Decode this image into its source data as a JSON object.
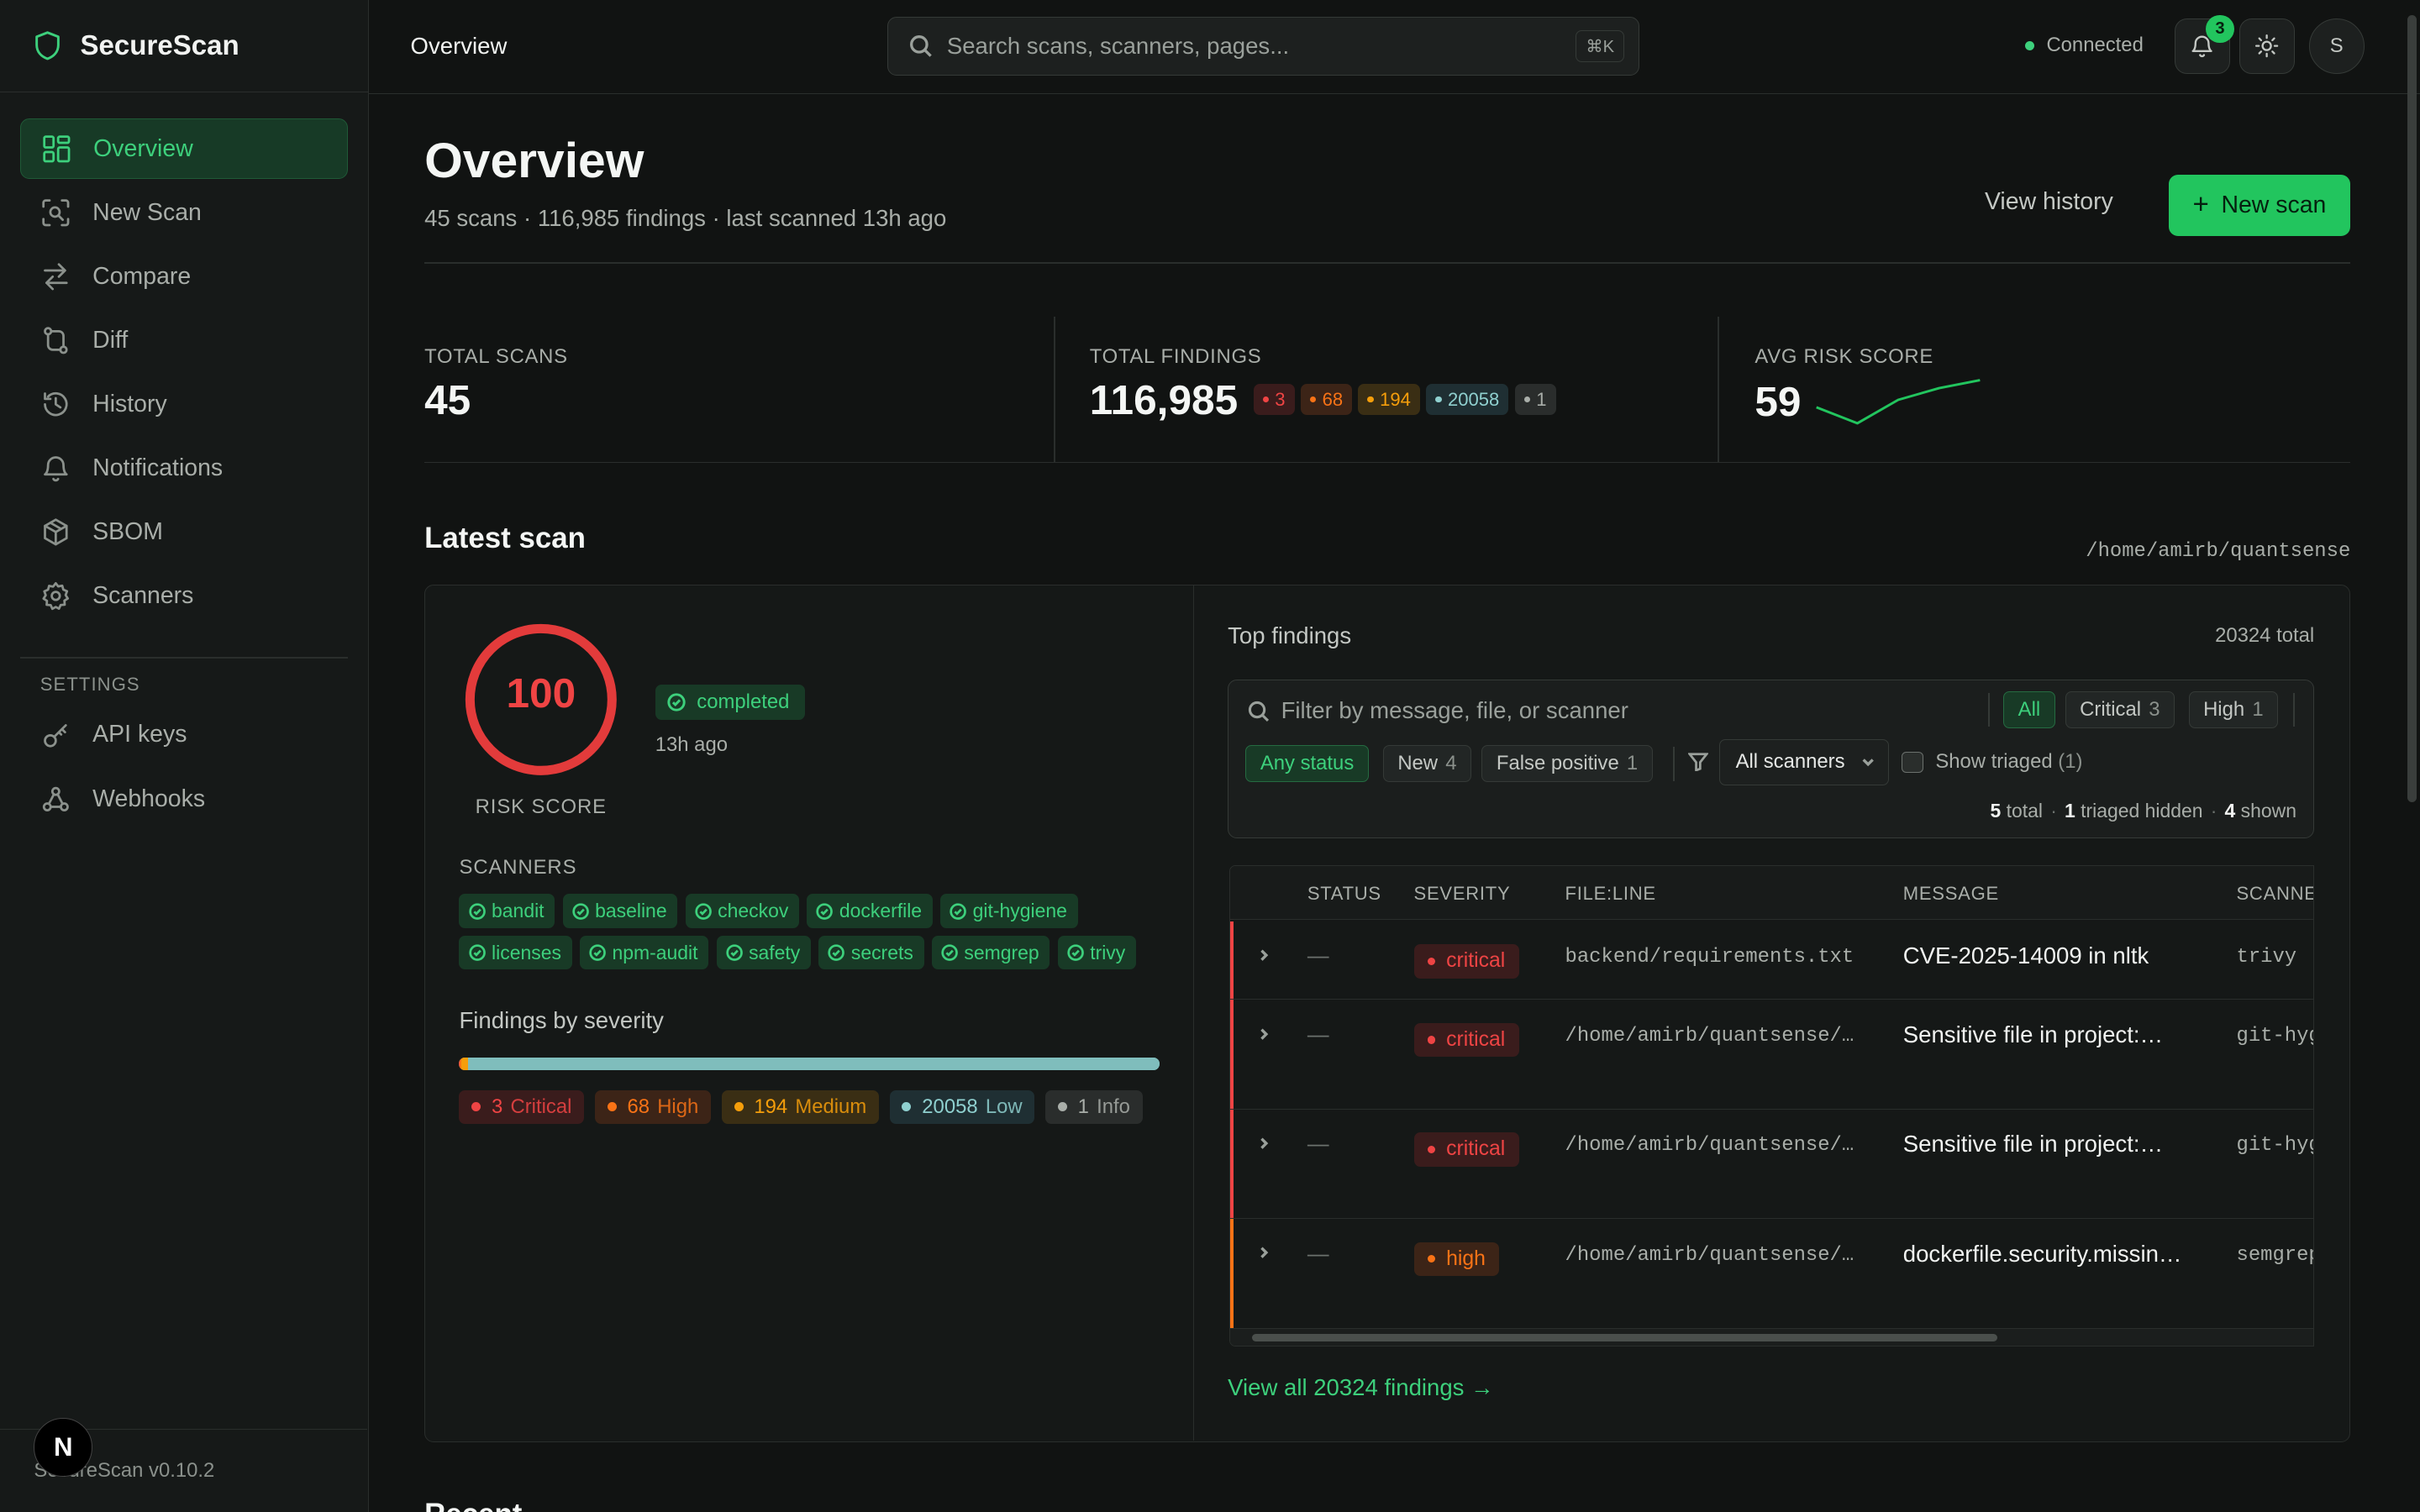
{
  "brand": {
    "name": "SecureScan",
    "version": "SecureScan v0.10.2",
    "logo_letter": "N"
  },
  "sidebar": {
    "items": [
      {
        "label": "Overview",
        "icon": "grid-icon",
        "active": true
      },
      {
        "label": "New Scan",
        "icon": "scan-icon"
      },
      {
        "label": "Compare",
        "icon": "arrows-icon"
      },
      {
        "label": "Diff",
        "icon": "git-diff-icon"
      },
      {
        "label": "History",
        "icon": "history-icon"
      },
      {
        "label": "Notifications",
        "icon": "bell-icon"
      },
      {
        "label": "SBOM",
        "icon": "box-icon"
      },
      {
        "label": "Scanners",
        "icon": "gear-icon"
      }
    ],
    "settings_label": "SETTINGS",
    "settings_items": [
      {
        "label": "API keys",
        "icon": "key-icon"
      },
      {
        "label": "Webhooks",
        "icon": "webhook-icon"
      }
    ]
  },
  "topbar": {
    "breadcrumb": "Overview",
    "search_placeholder": "Search scans, scanners, pages...",
    "shortcut": "⌘K",
    "status": "Connected",
    "notification_count": "3",
    "avatar": "S"
  },
  "page": {
    "title": "Overview",
    "subtitle": "45 scans · 116,985 findings · last scanned 13h ago",
    "view_history": "View history",
    "new_scan": "New scan"
  },
  "stats": {
    "total_scans": {
      "label": "TOTAL SCANS",
      "value": "45"
    },
    "total_findings": {
      "label": "TOTAL FINDINGS",
      "value": "116,985",
      "pills": {
        "critical": "3",
        "high": "68",
        "medium": "194",
        "low": "20058",
        "info": "1"
      }
    },
    "avg_risk": {
      "label": "AVG RISK SCORE",
      "value": "59",
      "trend": [
        40,
        62,
        30,
        14,
        3
      ]
    }
  },
  "latest_scan": {
    "title": "Latest scan",
    "path": "/home/amirb/quantsense",
    "risk_score": "100",
    "risk_label": "RISK SCORE",
    "status": "completed",
    "ago": "13h ago",
    "scanners_label": "SCANNERS",
    "scanners": [
      "bandit",
      "baseline",
      "checkov",
      "dockerfile",
      "git-hygiene",
      "licenses",
      "npm-audit",
      "safety",
      "secrets",
      "semgrep",
      "trivy"
    ],
    "severity_title": "Findings by severity",
    "severity": [
      {
        "count": "3",
        "label": "Critical",
        "key": "crit",
        "value": 3
      },
      {
        "count": "68",
        "label": "High",
        "key": "high",
        "value": 68
      },
      {
        "count": "194",
        "label": "Medium",
        "key": "med",
        "value": 194
      },
      {
        "count": "20058",
        "label": "Low",
        "key": "low",
        "value": 20058
      },
      {
        "count": "1",
        "label": "Info",
        "key": "info",
        "value": 1
      }
    ]
  },
  "top_findings": {
    "title": "Top findings",
    "total": "20324 total",
    "filter_placeholder": "Filter by message, file, or scanner",
    "severity_filters": [
      {
        "label": "All",
        "count": "",
        "on": true
      },
      {
        "label": "Critical",
        "count": "3"
      },
      {
        "label": "High",
        "count": "1"
      }
    ],
    "status_filters": [
      {
        "label": "Any status",
        "count": "",
        "on": true
      },
      {
        "label": "New",
        "count": "4"
      },
      {
        "label": "False positive",
        "count": "1"
      }
    ],
    "scanner_select": "All scanners",
    "show_triaged": "Show triaged",
    "show_triaged_count": "(1)",
    "counts": {
      "total": "5",
      "total_label": "total",
      "hidden": "1",
      "hidden_label": "triaged hidden",
      "shown": "4",
      "shown_label": "shown"
    },
    "columns": [
      "STATUS",
      "SEVERITY",
      "FILE:LINE",
      "MESSAGE",
      "SCANNER"
    ],
    "rows": [
      {
        "status": "—",
        "severity": "critical",
        "file": "backend/requirements.txt",
        "message": "CVE-2025-14009 in nltk",
        "scanner": "trivy"
      },
      {
        "status": "—",
        "severity": "critical",
        "file": "/home/amirb/quantsense/…",
        "message": "Sensitive file in project:…",
        "scanner": "git-hygiene"
      },
      {
        "status": "—",
        "severity": "critical",
        "file": "/home/amirb/quantsense/…",
        "message": "Sensitive file in project:…",
        "scanner": "git-hygiene"
      },
      {
        "status": "—",
        "severity": "high",
        "file": "/home/amirb/quantsense/…",
        "message": "dockerfile.security.missin…",
        "scanner": "semgrep"
      }
    ],
    "view_all": "View all 20324 findings →"
  },
  "recent_title": "Recent",
  "colors": {
    "accent": "#22c55e",
    "critical": "#ef4444",
    "high": "#f97316",
    "medium": "#f59e0b",
    "low": "#8fd0cf"
  }
}
